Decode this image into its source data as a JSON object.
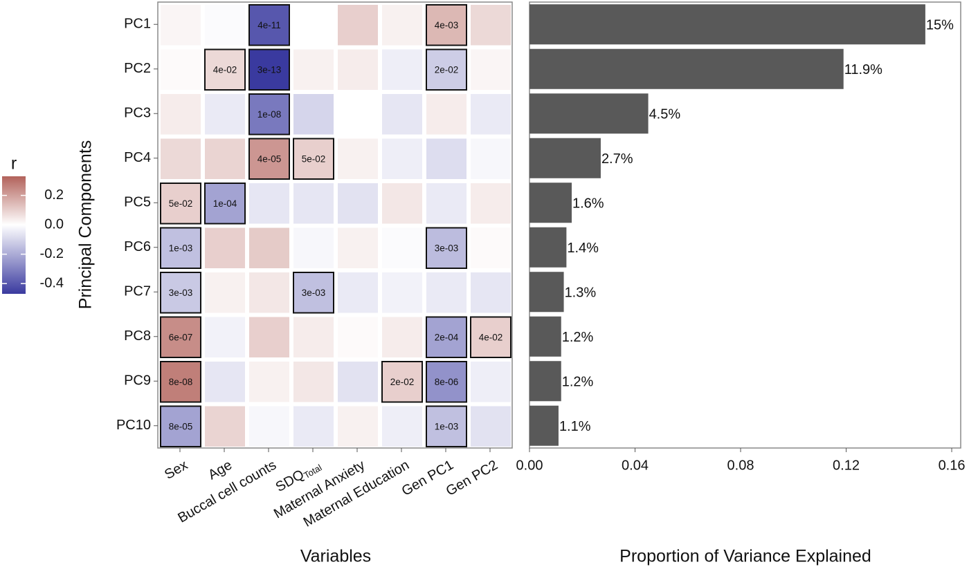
{
  "chart_data": [
    {
      "type": "heatmap",
      "x_categories": [
        "Sex",
        "Age",
        "Buccal cell counts",
        "SDQ",
        "Maternal Anxiety",
        "Maternal Education",
        "Gen PC1",
        "Gen PC2"
      ],
      "x_category_subscripts": [
        null,
        null,
        null,
        "Total",
        null,
        null,
        null,
        null
      ],
      "y_categories": [
        "PC1",
        "PC2",
        "PC3",
        "PC4",
        "PC5",
        "PC6",
        "PC7",
        "PC8",
        "PC9",
        "PC10"
      ],
      "values": [
        [
          0.02,
          -0.01,
          -0.4,
          0.0,
          0.1,
          0.03,
          0.15,
          0.08
        ],
        [
          0.01,
          0.08,
          -0.48,
          0.03,
          0.04,
          -0.04,
          -0.12,
          0.02
        ],
        [
          0.04,
          -0.05,
          -0.32,
          -0.1,
          0.0,
          -0.06,
          0.04,
          -0.05
        ],
        [
          0.08,
          0.09,
          0.22,
          0.1,
          0.03,
          -0.04,
          -0.08,
          -0.02
        ],
        [
          0.1,
          -0.22,
          -0.06,
          -0.06,
          -0.07,
          0.05,
          -0.05,
          0.04
        ],
        [
          -0.15,
          0.1,
          0.11,
          -0.02,
          0.03,
          -0.01,
          -0.16,
          0.01
        ],
        [
          -0.13,
          0.03,
          0.05,
          -0.15,
          -0.05,
          -0.03,
          -0.05,
          -0.06
        ],
        [
          0.24,
          -0.03,
          0.1,
          0.04,
          0.01,
          0.04,
          -0.22,
          0.1
        ],
        [
          0.27,
          -0.06,
          0.03,
          0.05,
          -0.07,
          0.1,
          -0.26,
          -0.04
        ],
        [
          -0.22,
          0.09,
          -0.02,
          -0.05,
          0.03,
          -0.04,
          -0.15,
          -0.07
        ]
      ],
      "cell_labels": [
        [
          null,
          null,
          "4e-11",
          null,
          null,
          null,
          "4e-03",
          null
        ],
        [
          null,
          "4e-02",
          "3e-13",
          null,
          null,
          null,
          "2e-02",
          null
        ],
        [
          null,
          null,
          "1e-08",
          null,
          null,
          null,
          null,
          null
        ],
        [
          null,
          null,
          "4e-05",
          "5e-02",
          null,
          null,
          null,
          null
        ],
        [
          "5e-02",
          "1e-04",
          null,
          null,
          null,
          null,
          null,
          null
        ],
        [
          "1e-03",
          null,
          null,
          null,
          null,
          null,
          "3e-03",
          null
        ],
        [
          "3e-03",
          null,
          null,
          "3e-03",
          null,
          null,
          null,
          null
        ],
        [
          "6e-07",
          null,
          null,
          null,
          null,
          null,
          "2e-04",
          "4e-02"
        ],
        [
          "8e-08",
          null,
          null,
          null,
          null,
          "2e-02",
          "8e-06",
          null
        ],
        [
          "8e-05",
          null,
          null,
          null,
          null,
          null,
          "1e-03",
          null
        ]
      ],
      "xlabel": "Variables",
      "ylabel": "Principal Components",
      "color_scale": {
        "title": "r",
        "low": "#3a3a9f",
        "mid": "#ffffff",
        "high": "#b2625b",
        "clim": [
          -0.47,
          0.33
        ],
        "ticks": [
          0.2,
          {
            "value": 0,
            "label": "0.0"
          },
          -0.2,
          -0.4
        ]
      }
    },
    {
      "type": "hbar",
      "values": [
        0.15,
        0.119,
        0.045,
        0.027,
        0.016,
        0.014,
        0.013,
        0.012,
        0.012,
        0.011
      ],
      "value_labels": [
        "15%",
        "11.9%",
        "4.5%",
        "2.7%",
        "1.6%",
        "1.4%",
        "1.3%",
        "1.2%",
        "1.2%",
        "1.1%"
      ],
      "color": "#595959",
      "xlim": [
        0,
        0.1634
      ],
      "xticks": [
        {
          "value": 0,
          "label": "0.00"
        },
        0.04,
        0.08,
        0.12,
        0.16
      ],
      "xlabel": "Proportion of Variance Explained"
    }
  ]
}
